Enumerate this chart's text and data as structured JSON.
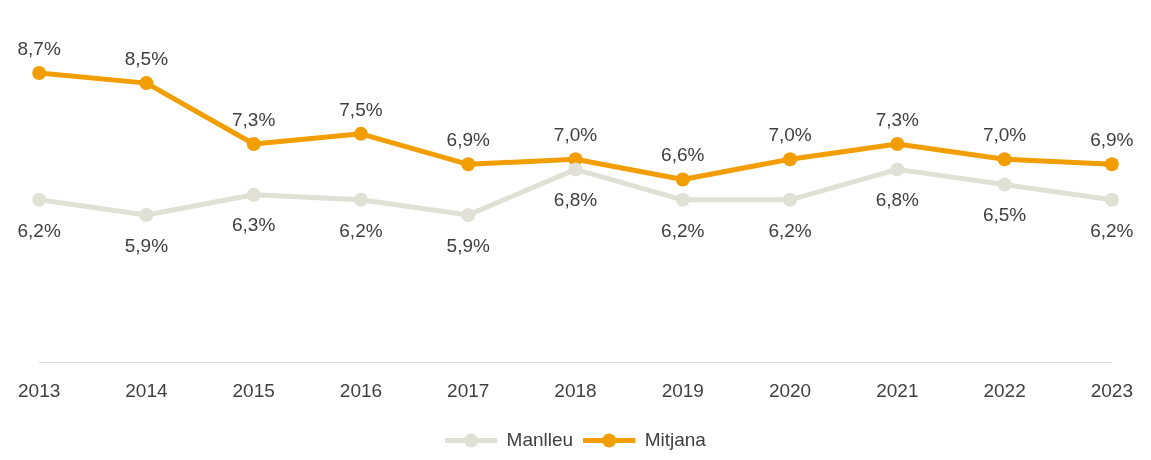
{
  "chart_data": {
    "type": "line",
    "categories": [
      "2013",
      "2014",
      "2015",
      "2016",
      "2017",
      "2018",
      "2019",
      "2020",
      "2021",
      "2022",
      "2023"
    ],
    "series": [
      {
        "name": "Manlleu",
        "color": "#e0e0d6",
        "values": [
          6.2,
          5.9,
          6.3,
          6.2,
          5.9,
          6.8,
          6.2,
          6.2,
          6.8,
          6.5,
          6.2
        ],
        "value_labels": [
          "6,2%",
          "5,9%",
          "6,3%",
          "6,2%",
          "5,9%",
          "6,8%",
          "6,2%",
          "6,2%",
          "6,8%",
          "6,5%",
          "6,2%"
        ]
      },
      {
        "name": "Mitjana",
        "color": "#f29d00",
        "values": [
          8.7,
          8.5,
          7.3,
          7.5,
          6.9,
          7.0,
          6.6,
          7.0,
          7.3,
          7.0,
          6.9
        ],
        "value_labels": [
          "8,7%",
          "8,5%",
          "7,3%",
          "7,5%",
          "6,9%",
          "7,0%",
          "6,6%",
          "7,0%",
          "7,3%",
          "7,0%",
          "6,9%"
        ]
      }
    ],
    "tick_labels": "x",
    "grid": false,
    "legend": "bottom",
    "marker": "circle",
    "line_style": "solid"
  }
}
